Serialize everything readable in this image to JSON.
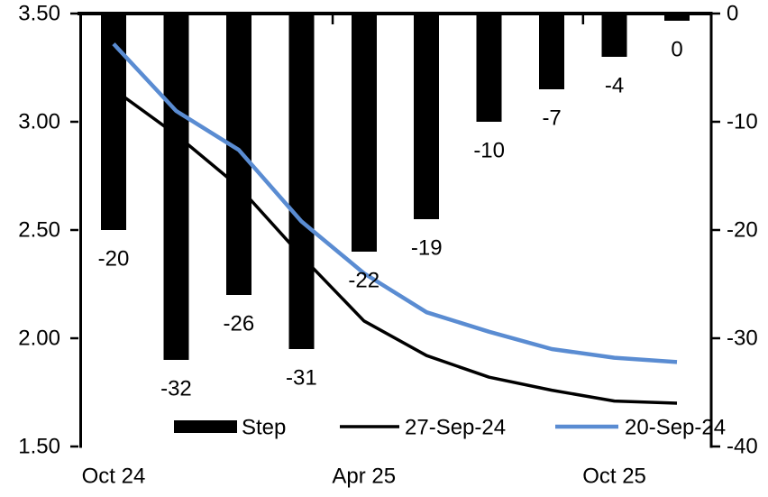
{
  "chart_data": {
    "type": "combo-bar-line",
    "title": "",
    "x_axis": {
      "labels": [
        {
          "text": "Oct 24",
          "bar_index": 0
        },
        {
          "text": "Apr 25",
          "bar_index": 4
        },
        {
          "text": "Oct 25",
          "bar_index": 8
        }
      ],
      "boundary_tick_bar_indices": [
        4,
        8
      ]
    },
    "left_axis": {
      "min": 1.5,
      "max": 3.5,
      "ticks": [
        "3.50",
        "3.00",
        "2.50",
        "2.00",
        "1.50"
      ]
    },
    "right_axis": {
      "min": -40,
      "max": 0,
      "ticks": [
        "0",
        "-10",
        "-20",
        "-30",
        "-40"
      ]
    },
    "bars": {
      "name": "Step",
      "color": "#000000",
      "axis": "right",
      "values": [
        -20,
        -32,
        -26,
        -31,
        -22,
        -19,
        -10,
        -7,
        -4,
        0
      ],
      "labels": [
        "-20",
        "-32",
        "-26",
        "-31",
        "-22",
        "-19",
        "-10",
        "-7",
        "-4",
        "0"
      ]
    },
    "series": [
      {
        "name": "27-Sep-24",
        "color": "#000000",
        "axis": "left",
        "values": [
          3.15,
          2.94,
          2.7,
          2.38,
          2.08,
          1.92,
          1.82,
          1.76,
          1.71,
          1.7
        ]
      },
      {
        "name": "20-Sep-24",
        "color": "#5A8CD2",
        "axis": "left",
        "values": [
          3.36,
          3.05,
          2.87,
          2.54,
          2.3,
          2.12,
          2.03,
          1.95,
          1.91,
          1.89
        ]
      }
    ],
    "legend": {
      "position": "bottom"
    }
  }
}
